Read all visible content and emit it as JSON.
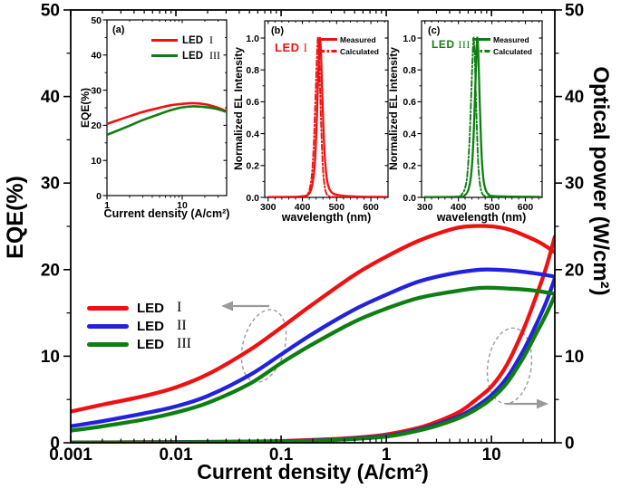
{
  "figure": {
    "background": "#ffffff"
  },
  "colors": {
    "led1": "#ee1111",
    "led2": "#2222dd",
    "led3": "#0f7e12",
    "annotation": "#9a9a9a",
    "axis": "#000000"
  },
  "chart_data": {
    "type": "line",
    "main_plot": {
      "xlabel": "Current density (A/cm²)",
      "ylabel_left": "EQE(%)",
      "ylabel_right": "Optical power (W/cm²)",
      "x_scale": "log",
      "xlim": [
        0.001,
        40
      ],
      "ylim_left": [
        0,
        50
      ],
      "ylim_right": [
        0,
        50
      ],
      "x_ticks": [
        0.001,
        0.01,
        0.1,
        1,
        10
      ],
      "x_tick_labels": [
        "0.001",
        "0.01",
        "0.1",
        "1",
        "10"
      ],
      "y_ticks": [
        0,
        10,
        20,
        30,
        40,
        50
      ],
      "legend": [
        {
          "label": "LED",
          "numeral": "I",
          "color": "#ee1111"
        },
        {
          "label": "LED",
          "numeral": "II",
          "color": "#2222dd"
        },
        {
          "label": "LED",
          "numeral": "III",
          "color": "#0f7e12"
        }
      ],
      "eqe_series": [
        {
          "name": "LED I",
          "color": "#ee1111",
          "points": [
            [
              0.001,
              3.6
            ],
            [
              0.002,
              4.4
            ],
            [
              0.005,
              5.4
            ],
            [
              0.01,
              6.4
            ],
            [
              0.02,
              7.9
            ],
            [
              0.05,
              10.7
            ],
            [
              0.1,
              13.3
            ],
            [
              0.2,
              16.0
            ],
            [
              0.5,
              19.4
            ],
            [
              1,
              21.5
            ],
            [
              2,
              23.3
            ],
            [
              4,
              24.6
            ],
            [
              6,
              25.0
            ],
            [
              10,
              25.0
            ],
            [
              15,
              24.6
            ],
            [
              25,
              23.5
            ],
            [
              32,
              22.8
            ],
            [
              40,
              22.0
            ]
          ]
        },
        {
          "name": "LED II",
          "color": "#2222dd",
          "points": [
            [
              0.001,
              1.9
            ],
            [
              0.002,
              2.5
            ],
            [
              0.005,
              3.4
            ],
            [
              0.01,
              4.2
            ],
            [
              0.02,
              5.4
            ],
            [
              0.05,
              7.8
            ],
            [
              0.1,
              10.2
            ],
            [
              0.2,
              12.6
            ],
            [
              0.5,
              15.4
            ],
            [
              1,
              17.1
            ],
            [
              2,
              18.6
            ],
            [
              4,
              19.5
            ],
            [
              8,
              20.0
            ],
            [
              15,
              19.9
            ],
            [
              25,
              19.6
            ],
            [
              40,
              19.2
            ]
          ]
        },
        {
          "name": "LED III",
          "color": "#0f7e12",
          "points": [
            [
              0.001,
              1.4
            ],
            [
              0.002,
              1.9
            ],
            [
              0.005,
              2.7
            ],
            [
              0.01,
              3.5
            ],
            [
              0.02,
              4.6
            ],
            [
              0.05,
              6.8
            ],
            [
              0.1,
              9.2
            ],
            [
              0.2,
              11.4
            ],
            [
              0.5,
              14.0
            ],
            [
              1,
              15.5
            ],
            [
              2,
              16.7
            ],
            [
              4,
              17.4
            ],
            [
              8,
              17.9
            ],
            [
              15,
              17.8
            ],
            [
              25,
              17.6
            ],
            [
              40,
              17.2
            ]
          ]
        }
      ],
      "power_series": [
        {
          "name": "LED I",
          "color": "#ee1111",
          "points": [
            [
              0.001,
              0.04
            ],
            [
              0.01,
              0.08
            ],
            [
              0.05,
              0.14
            ],
            [
              0.1,
              0.2
            ],
            [
              0.3,
              0.42
            ],
            [
              0.6,
              0.65
            ],
            [
              1,
              0.95
            ],
            [
              2,
              1.7
            ],
            [
              3,
              2.4
            ],
            [
              5,
              3.6
            ],
            [
              7,
              4.9
            ],
            [
              10,
              6.5
            ],
            [
              14,
              9.0
            ],
            [
              20,
              13.0
            ],
            [
              26,
              16.6
            ],
            [
              33,
              20.2
            ],
            [
              40,
              23.8
            ]
          ]
        },
        {
          "name": "LED II",
          "color": "#2222dd",
          "points": [
            [
              0.001,
              0.03
            ],
            [
              0.01,
              0.06
            ],
            [
              0.1,
              0.16
            ],
            [
              0.3,
              0.35
            ],
            [
              1,
              0.8
            ],
            [
              2,
              1.5
            ],
            [
              3,
              2.1
            ],
            [
              5,
              3.1
            ],
            [
              7,
              4.1
            ],
            [
              10,
              5.5
            ],
            [
              14,
              7.5
            ],
            [
              20,
              10.6
            ],
            [
              26,
              13.4
            ],
            [
              33,
              16.2
            ],
            [
              40,
              19.0
            ]
          ]
        },
        {
          "name": "LED III",
          "color": "#0f7e12",
          "points": [
            [
              0.001,
              0.02
            ],
            [
              0.01,
              0.05
            ],
            [
              0.1,
              0.13
            ],
            [
              0.3,
              0.3
            ],
            [
              1,
              0.72
            ],
            [
              2,
              1.4
            ],
            [
              3,
              1.95
            ],
            [
              5,
              2.9
            ],
            [
              7,
              3.8
            ],
            [
              10,
              5.1
            ],
            [
              14,
              6.9
            ],
            [
              20,
              9.8
            ],
            [
              26,
              12.4
            ],
            [
              33,
              14.8
            ],
            [
              40,
              17.0
            ]
          ]
        }
      ],
      "annotations": [
        {
          "shape": "dashed-ellipse-with-arrow",
          "arrow_direction": "left",
          "meaning": "EQE curves read on left axis"
        },
        {
          "shape": "dashed-ellipse-with-arrow",
          "arrow_direction": "right",
          "meaning": "Optical power curves read on right axis"
        }
      ]
    },
    "inset_a": {
      "tag": "(a)",
      "xlabel": "Current density (A/cm²)",
      "ylabel": "EQE(%)",
      "x_scale": "log",
      "xlim": [
        1,
        39
      ],
      "ylim": [
        0,
        50
      ],
      "x_ticks": [
        1,
        10
      ],
      "x_tick_labels": [
        "1",
        "10"
      ],
      "y_ticks": [
        0,
        10,
        20,
        30,
        40,
        50
      ],
      "legend": [
        {
          "label": "LED",
          "numeral": "I",
          "color": "#ee1111"
        },
        {
          "label": "LED",
          "numeral": "III",
          "color": "#0f7e12"
        }
      ],
      "series": [
        {
          "name": "LED I",
          "color": "#ee1111",
          "points": [
            [
              1,
              20.4
            ],
            [
              1.5,
              21.7
            ],
            [
              2,
              22.6
            ],
            [
              3,
              23.8
            ],
            [
              5,
              25.0
            ],
            [
              7,
              25.7
            ],
            [
              10,
              26.1
            ],
            [
              14,
              26.3
            ],
            [
              20,
              26.0
            ],
            [
              28,
              25.2
            ],
            [
              39,
              24.0
            ]
          ]
        },
        {
          "name": "LED III",
          "color": "#0f7e12",
          "points": [
            [
              1,
              17.3
            ],
            [
              1.5,
              18.8
            ],
            [
              2,
              19.9
            ],
            [
              3,
              21.5
            ],
            [
              5,
              23.2
            ],
            [
              7,
              24.3
            ],
            [
              10,
              25.1
            ],
            [
              14,
              25.4
            ],
            [
              20,
              25.2
            ],
            [
              28,
              24.7
            ],
            [
              39,
              23.8
            ]
          ]
        }
      ]
    },
    "inset_b": {
      "tag": "(b)",
      "series_label": {
        "prefix": "LED",
        "numeral": "I"
      },
      "xlabel": "wavelength (nm)",
      "ylabel": "Normalized EL Intensity",
      "x_scale": "linear",
      "xlim": [
        290,
        650
      ],
      "ylim": [
        0,
        1.0
      ],
      "x_ticks": [
        300,
        400,
        500,
        600
      ],
      "y_ticks": [
        0,
        0.2,
        0.4,
        0.6,
        0.8,
        1.0
      ],
      "y_tick_labels": [
        "0.0",
        "0.2",
        "0.4",
        "0.6",
        "0.8",
        "1.0"
      ],
      "legend_measured": "Measured",
      "legend_calculated": "Calculated",
      "series": [
        {
          "name": "Measured",
          "style": "solid",
          "color": "#ee1111",
          "points": [
            [
              300,
              0.002
            ],
            [
              390,
              0.005
            ],
            [
              415,
              0.015
            ],
            [
              424,
              0.04
            ],
            [
              430,
              0.09
            ],
            [
              436,
              0.2
            ],
            [
              441,
              0.42
            ],
            [
              445,
              0.68
            ],
            [
              448,
              0.88
            ],
            [
              451,
              1.0
            ],
            [
              454,
              0.92
            ],
            [
              457,
              0.72
            ],
            [
              461,
              0.46
            ],
            [
              465,
              0.27
            ],
            [
              470,
              0.14
            ],
            [
              476,
              0.07
            ],
            [
              484,
              0.035
            ],
            [
              495,
              0.02
            ],
            [
              520,
              0.01
            ],
            [
              560,
              0.005
            ],
            [
              645,
              0.003
            ]
          ]
        },
        {
          "name": "Calculated",
          "style": "dash-dot",
          "color": "#ee1111",
          "points": [
            [
              300,
              0.002
            ],
            [
              400,
              0.004
            ],
            [
              415,
              0.02
            ],
            [
              422,
              0.06
            ],
            [
              428,
              0.15
            ],
            [
              433,
              0.32
            ],
            [
              437,
              0.55
            ],
            [
              441,
              0.8
            ],
            [
              444,
              0.96
            ],
            [
              446,
              1.0
            ],
            [
              449,
              0.88
            ],
            [
              452,
              0.65
            ],
            [
              456,
              0.38
            ],
            [
              460,
              0.18
            ],
            [
              465,
              0.07
            ],
            [
              470,
              0.025
            ],
            [
              478,
              0.008
            ],
            [
              500,
              0.003
            ],
            [
              645,
              0.002
            ]
          ]
        }
      ]
    },
    "inset_c": {
      "tag": "(c)",
      "series_label": {
        "prefix": "LED",
        "numeral": "III"
      },
      "xlabel": "wavelength (nm)",
      "ylabel": "Normalized EL Intensity",
      "x_scale": "linear",
      "xlim": [
        290,
        650
      ],
      "ylim": [
        0,
        1.0
      ],
      "x_ticks": [
        300,
        400,
        500,
        600
      ],
      "y_ticks": [
        0,
        0.2,
        0.4,
        0.6,
        0.8,
        1.0
      ],
      "y_tick_labels": [
        "0.0",
        "0.2",
        "0.4",
        "0.6",
        "0.8",
        "1.0"
      ],
      "legend_measured": "Measured",
      "legend_calculated": "Calculated",
      "series": [
        {
          "name": "Measured",
          "style": "solid",
          "color": "#0f7e12",
          "points": [
            [
              300,
              0.002
            ],
            [
              400,
              0.004
            ],
            [
              420,
              0.015
            ],
            [
              430,
              0.05
            ],
            [
              438,
              0.14
            ],
            [
              444,
              0.32
            ],
            [
              449,
              0.6
            ],
            [
              453,
              0.85
            ],
            [
              456,
              1.0
            ],
            [
              459,
              0.93
            ],
            [
              462,
              0.72
            ],
            [
              466,
              0.45
            ],
            [
              470,
              0.24
            ],
            [
              475,
              0.11
            ],
            [
              481,
              0.05
            ],
            [
              490,
              0.02
            ],
            [
              510,
              0.008
            ],
            [
              645,
              0.003
            ]
          ]
        },
        {
          "name": "Calculated",
          "style": "dash-dot",
          "color": "#0f7e12",
          "points": [
            [
              300,
              0.002
            ],
            [
              395,
              0.005
            ],
            [
              410,
              0.02
            ],
            [
              420,
              0.06
            ],
            [
              427,
              0.15
            ],
            [
              433,
              0.35
            ],
            [
              438,
              0.62
            ],
            [
              442,
              0.86
            ],
            [
              445,
              1.0
            ],
            [
              448,
              0.93
            ],
            [
              451,
              0.72
            ],
            [
              455,
              0.45
            ],
            [
              459,
              0.22
            ],
            [
              464,
              0.09
            ],
            [
              470,
              0.03
            ],
            [
              478,
              0.01
            ],
            [
              500,
              0.004
            ],
            [
              645,
              0.002
            ]
          ]
        }
      ]
    }
  }
}
